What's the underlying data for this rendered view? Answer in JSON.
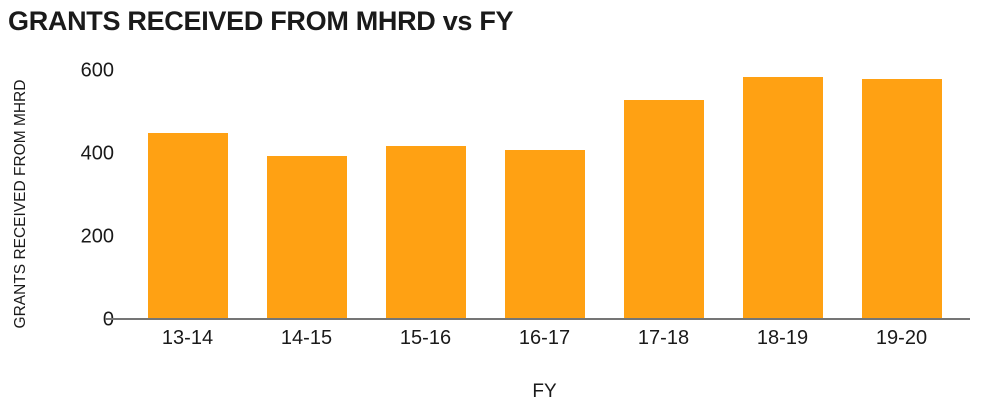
{
  "chart": {
    "title": "GRANTS RECEIVED FROM MHRD vs FY",
    "x_axis_title": "FY",
    "y_axis_title": "GRANTS RECEIVED FROM MHRD"
  },
  "chart_data": {
    "type": "bar",
    "title": "GRANTS RECEIVED FROM MHRD vs FY",
    "xlabel": "FY",
    "ylabel": "GRANTS RECEIVED FROM MHRD",
    "categories": [
      "13-14",
      "14-15",
      "15-16",
      "16-17",
      "17-18",
      "18-19",
      "19-20"
    ],
    "values": [
      450,
      395,
      420,
      410,
      530,
      585,
      580
    ],
    "ylim": [
      0,
      600
    ],
    "yticks": [
      0,
      200,
      400,
      600
    ],
    "grid": false,
    "legend": "none",
    "bar_color": "#FFA113",
    "axis_line_color": "#757575",
    "text_color": "#1A1A1A"
  }
}
